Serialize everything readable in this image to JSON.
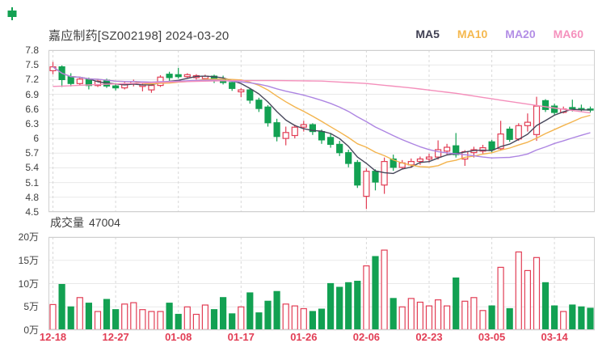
{
  "header": {
    "title": "嘉应制药[SZ002198] 2024-03-20",
    "legend": [
      {
        "label": "MA5",
        "color": "#3f3f52"
      },
      {
        "label": "MA10",
        "color": "#f5b84e"
      },
      {
        "label": "MA20",
        "color": "#b38ee6"
      },
      {
        "label": "MA60",
        "color": "#f591bd"
      }
    ]
  },
  "volume_header": {
    "label": "成交量",
    "value": "47004"
  },
  "colors": {
    "up": "#e23e55",
    "down": "#12a152",
    "grid": "#e9e9e9",
    "grid_dash": "#d8d8d8",
    "plot_border": "#cfcfcf",
    "axis_text": "#404040",
    "date_text": "#e23e55",
    "ma5": "#46465a",
    "ma10": "#f3b44e",
    "ma20": "#ad85e2",
    "ma60": "#f48fbb"
  },
  "chart_data": {
    "type": "candlestick",
    "title": "嘉应制药[SZ002198] 2024-03-20",
    "legend_entries": [
      "MA5",
      "MA10",
      "MA20",
      "MA60"
    ],
    "legend_position": "top-right",
    "grid": true,
    "price_axis": {
      "min": 4.5,
      "max": 7.8,
      "tick_labels": [
        "7.8",
        "7.5",
        "7.2",
        "6.9",
        "6.6",
        "6.3",
        "6",
        "5.7",
        "5.4",
        "5.1",
        "4.8",
        "4.5"
      ],
      "tick_values": [
        7.8,
        7.5,
        7.2,
        6.9,
        6.6,
        6.3,
        6.0,
        5.7,
        5.4,
        5.1,
        4.8,
        4.5
      ]
    },
    "volume_axis": {
      "unit": "万",
      "tick_labels": [
        "20万",
        "15万",
        "10万",
        "5万",
        "0万"
      ],
      "tick_values_wan": [
        20,
        15,
        10,
        5,
        0
      ]
    },
    "x_ticks": [
      {
        "index": 0,
        "label": "12-18"
      },
      {
        "index": 7,
        "label": "12-27"
      },
      {
        "index": 14,
        "label": "01-08"
      },
      {
        "index": 21,
        "label": "01-17"
      },
      {
        "index": 28,
        "label": "01-26"
      },
      {
        "index": 35,
        "label": "02-06"
      },
      {
        "index": 42,
        "label": "02-23"
      },
      {
        "index": 49,
        "label": "03-05"
      },
      {
        "index": 56,
        "label": "03-14"
      }
    ],
    "candles_ohlcv_wan": [
      [
        7.38,
        7.56,
        7.31,
        7.46,
        5.5
      ],
      [
        7.46,
        7.49,
        7.05,
        7.2,
        9.8
      ],
      [
        7.26,
        7.33,
        7.06,
        7.12,
        5.0
      ],
      [
        7.12,
        7.25,
        7.08,
        7.21,
        7.0
      ],
      [
        7.21,
        7.24,
        7.0,
        7.08,
        5.8
      ],
      [
        7.08,
        7.21,
        7.05,
        7.17,
        4.0
      ],
      [
        7.19,
        7.22,
        7.03,
        7.07,
        6.6
      ],
      [
        7.07,
        7.13,
        6.98,
        7.03,
        4.4
      ],
      [
        7.03,
        7.15,
        7.0,
        7.11,
        5.6
      ],
      [
        7.11,
        7.2,
        7.06,
        7.16,
        5.9
      ],
      [
        7.06,
        7.13,
        6.96,
        7.09,
        4.4
      ],
      [
        6.99,
        7.12,
        6.93,
        7.08,
        4.0
      ],
      [
        7.08,
        7.29,
        7.05,
        7.25,
        4.0
      ],
      [
        7.31,
        7.36,
        7.18,
        7.24,
        5.8
      ],
      [
        7.3,
        7.44,
        7.22,
        7.26,
        3.4
      ],
      [
        7.26,
        7.33,
        7.22,
        7.3,
        5.0
      ],
      [
        7.24,
        7.31,
        7.2,
        7.28,
        3.4
      ],
      [
        7.22,
        7.3,
        7.18,
        7.27,
        5.4
      ],
      [
        7.27,
        7.3,
        7.13,
        7.18,
        4.4
      ],
      [
        7.2,
        7.28,
        7.1,
        7.14,
        7.0
      ],
      [
        7.14,
        7.18,
        6.97,
        7.02,
        3.5
      ],
      [
        6.95,
        7.03,
        6.84,
        6.99,
        5.0
      ],
      [
        6.99,
        7.02,
        6.71,
        6.78,
        8.0
      ],
      [
        6.78,
        6.83,
        6.54,
        6.61,
        3.7
      ],
      [
        6.64,
        6.68,
        6.24,
        6.32,
        6.2
      ],
      [
        6.32,
        6.4,
        5.94,
        6.04,
        8.3
      ],
      [
        6.0,
        6.24,
        5.86,
        6.12,
        5.6
      ],
      [
        6.06,
        6.28,
        6.0,
        6.23,
        5.2
      ],
      [
        6.23,
        6.36,
        6.14,
        6.28,
        4.6
      ],
      [
        6.28,
        6.31,
        6.07,
        6.14,
        4.0
      ],
      [
        6.14,
        6.18,
        5.89,
        5.97,
        4.5
      ],
      [
        6.02,
        6.11,
        5.81,
        5.88,
        10.0
      ],
      [
        5.88,
        5.95,
        5.64,
        5.71,
        9.2
      ],
      [
        5.71,
        5.77,
        5.41,
        5.49,
        10.2
      ],
      [
        5.51,
        5.56,
        4.99,
        5.05,
        10.5
      ],
      [
        4.82,
        5.39,
        4.56,
        5.33,
        13.8
      ],
      [
        5.33,
        5.37,
        4.94,
        5.11,
        15.8
      ],
      [
        5.05,
        5.61,
        4.87,
        5.53,
        17.2
      ],
      [
        5.58,
        5.67,
        5.34,
        5.41,
        6.8
      ],
      [
        5.41,
        5.56,
        5.37,
        5.5,
        5.0
      ],
      [
        5.46,
        5.59,
        5.4,
        5.53,
        6.8
      ],
      [
        5.53,
        5.63,
        5.46,
        5.58,
        6.0
      ],
      [
        5.58,
        5.69,
        5.51,
        5.62,
        5.2
      ],
      [
        5.62,
        5.96,
        5.57,
        5.77,
        6.5
      ],
      [
        5.74,
        5.89,
        5.67,
        5.82,
        5.2
      ],
      [
        5.85,
        6.11,
        5.61,
        5.67,
        11.2
      ],
      [
        5.58,
        5.76,
        5.44,
        5.73,
        6.2
      ],
      [
        5.71,
        5.83,
        5.61,
        5.77,
        7.0
      ],
      [
        5.74,
        5.87,
        5.69,
        5.81,
        4.2
      ],
      [
        5.93,
        5.97,
        5.71,
        5.77,
        5.2
      ],
      [
        5.79,
        6.36,
        5.75,
        6.09,
        13.5
      ],
      [
        6.19,
        6.24,
        5.93,
        5.98,
        4.6
      ],
      [
        5.99,
        6.31,
        5.95,
        6.26,
        16.8
      ],
      [
        6.26,
        6.51,
        6.14,
        6.33,
        12.8
      ],
      [
        6.08,
        6.85,
        5.95,
        6.66,
        15.6
      ],
      [
        6.77,
        6.8,
        6.54,
        6.59,
        10.2
      ],
      [
        6.66,
        6.71,
        6.47,
        6.53,
        5.2
      ],
      [
        6.53,
        6.65,
        6.51,
        6.6,
        4.0
      ],
      [
        6.63,
        6.79,
        6.55,
        6.59,
        5.4
      ],
      [
        6.61,
        6.69,
        6.55,
        6.6,
        5.0
      ],
      [
        6.6,
        6.65,
        6.53,
        6.58,
        4.7
      ]
    ],
    "ma_periods": {
      "MA5": 5,
      "MA10": 10,
      "MA20": 20
    },
    "ma60_points": [
      [
        0,
        7.06
      ],
      [
        5,
        7.1
      ],
      [
        10,
        7.13
      ],
      [
        15,
        7.16
      ],
      [
        20,
        7.18
      ],
      [
        25,
        7.18
      ],
      [
        30,
        7.17
      ],
      [
        35,
        7.12
      ],
      [
        40,
        7.03
      ],
      [
        45,
        6.92
      ],
      [
        50,
        6.78
      ],
      [
        56,
        6.62
      ],
      [
        60,
        6.52
      ]
    ]
  }
}
